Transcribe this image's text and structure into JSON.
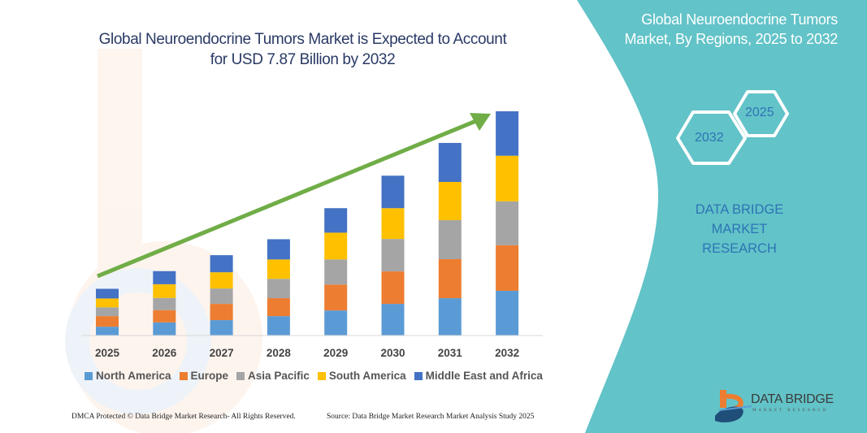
{
  "header": {
    "title_line1": "Global Neuroendocrine Tumors Market is Expected to Account",
    "title_line2": "for USD 7.87 Billion by 2032"
  },
  "side_panel": {
    "title_line1": "Global Neuroendocrine Tumors",
    "title_line2": "Market, By Regions, 2025 to 2032",
    "hex_start_year": "2025",
    "hex_end_year": "2032",
    "company_line1": "DATA BRIDGE MARKET",
    "company_line2": "RESEARCH",
    "logo_text": "DATA BRIDGE",
    "logo_subtext": "MARKET RESEARCH",
    "panel_color": "#62c3c8"
  },
  "footer": {
    "left": "DMCA Protected © Data Bridge Market Research- All Rights Reserved.",
    "right": "Source: Data Bridge Market Research  Market Analysis Study 2025"
  },
  "chart_data": {
    "type": "bar",
    "stacked": true,
    "title": "Global Neuroendocrine Tumors Market is Expected to Account for USD 7.87 Billion by 2032",
    "xlabel": "",
    "ylabel": "",
    "grid": false,
    "legend_position": "bottom",
    "trend_arrow": true,
    "trend_arrow_color": "#70ad47",
    "categories": [
      "2025",
      "2026",
      "2027",
      "2028",
      "2029",
      "2030",
      "2031",
      "2032"
    ],
    "series": [
      {
        "name": "North America",
        "color": "#5b9bd5",
        "values": [
          0.31,
          0.46,
          0.54,
          0.68,
          0.88,
          1.11,
          1.31,
          1.57
        ]
      },
      {
        "name": "Europe",
        "color": "#ed7d31",
        "values": [
          0.37,
          0.43,
          0.57,
          0.63,
          0.91,
          1.14,
          1.37,
          1.6
        ]
      },
      {
        "name": "Asia Pacific",
        "color": "#a5a5a5",
        "values": [
          0.31,
          0.43,
          0.54,
          0.68,
          0.88,
          1.14,
          1.37,
          1.54
        ]
      },
      {
        "name": "South America",
        "color": "#ffc000",
        "values": [
          0.31,
          0.48,
          0.57,
          0.68,
          0.94,
          1.08,
          1.34,
          1.6
        ]
      },
      {
        "name": "Middle East and Africa",
        "color": "#4472c4",
        "values": [
          0.34,
          0.46,
          0.6,
          0.71,
          0.86,
          1.14,
          1.37,
          1.56
        ]
      }
    ]
  }
}
